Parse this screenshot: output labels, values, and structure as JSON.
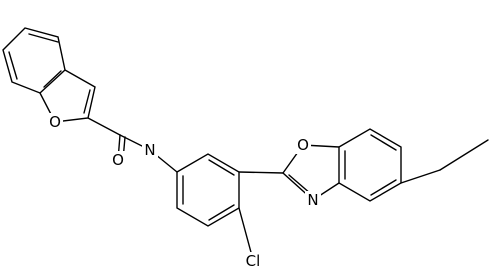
{
  "atoms": {
    "benzofuran_o": "O",
    "carbonyl_o": "O",
    "amide_n": "N",
    "oxazole_o": "O",
    "oxazole_n": "N",
    "chlorine": "Cl"
  }
}
